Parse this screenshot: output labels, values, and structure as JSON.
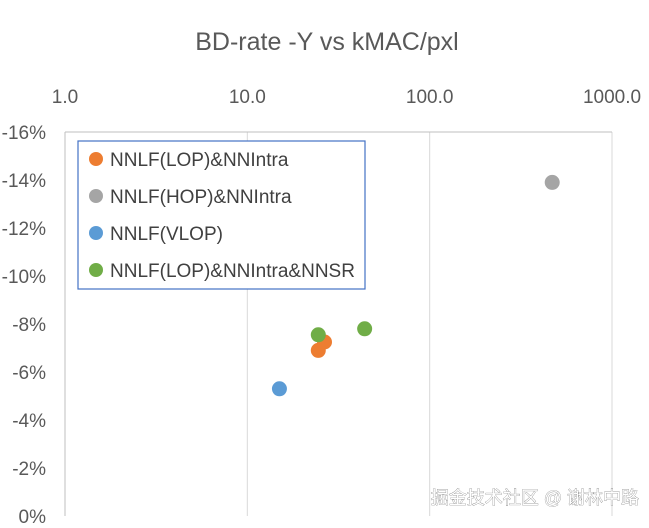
{
  "chart_data": {
    "type": "scatter",
    "title": "BD-rate -Y vs kMAC/pxl",
    "x_axis": {
      "scale": "log",
      "position": "top",
      "range": [
        1,
        1000
      ],
      "ticks": [
        1,
        10,
        100,
        1000
      ],
      "tick_labels": [
        "1.0",
        "10.0",
        "100.0",
        "1000.0"
      ]
    },
    "y_axis": {
      "reversed": true,
      "range": [
        0,
        -16
      ],
      "ticks": [
        0,
        -2,
        -4,
        -6,
        -8,
        -10,
        -12,
        -14,
        -16
      ],
      "tick_labels": [
        "0%",
        "-2%",
        "-4%",
        "-6%",
        "-8%",
        "-10%",
        "-12%",
        "-14%",
        "-16%"
      ]
    },
    "grid": {
      "vertical": true,
      "horizontal": false
    },
    "legend_position": "top-left",
    "series": [
      {
        "name": "NNLF(LOP)&NNIntra",
        "color": "#ED7D31",
        "points": [
          {
            "x": 24.5,
            "y": -6.9
          },
          {
            "x": 26.5,
            "y": -7.25
          }
        ]
      },
      {
        "name": "NNLF(HOP)&NNIntra",
        "color": "#A5A5A5",
        "points": [
          {
            "x": 470,
            "y": -13.9
          }
        ]
      },
      {
        "name": "NNLF(VLOP)",
        "color": "#5B9BD5",
        "points": [
          {
            "x": 15,
            "y": -5.3
          }
        ]
      },
      {
        "name": "NNLF(LOP)&NNIntra&NNSR",
        "color": "#70AD47",
        "points": [
          {
            "x": 24.5,
            "y": -7.55
          },
          {
            "x": 44,
            "y": -7.8
          }
        ]
      }
    ]
  },
  "watermark": "掘金技术社区 @ 谢林中路"
}
